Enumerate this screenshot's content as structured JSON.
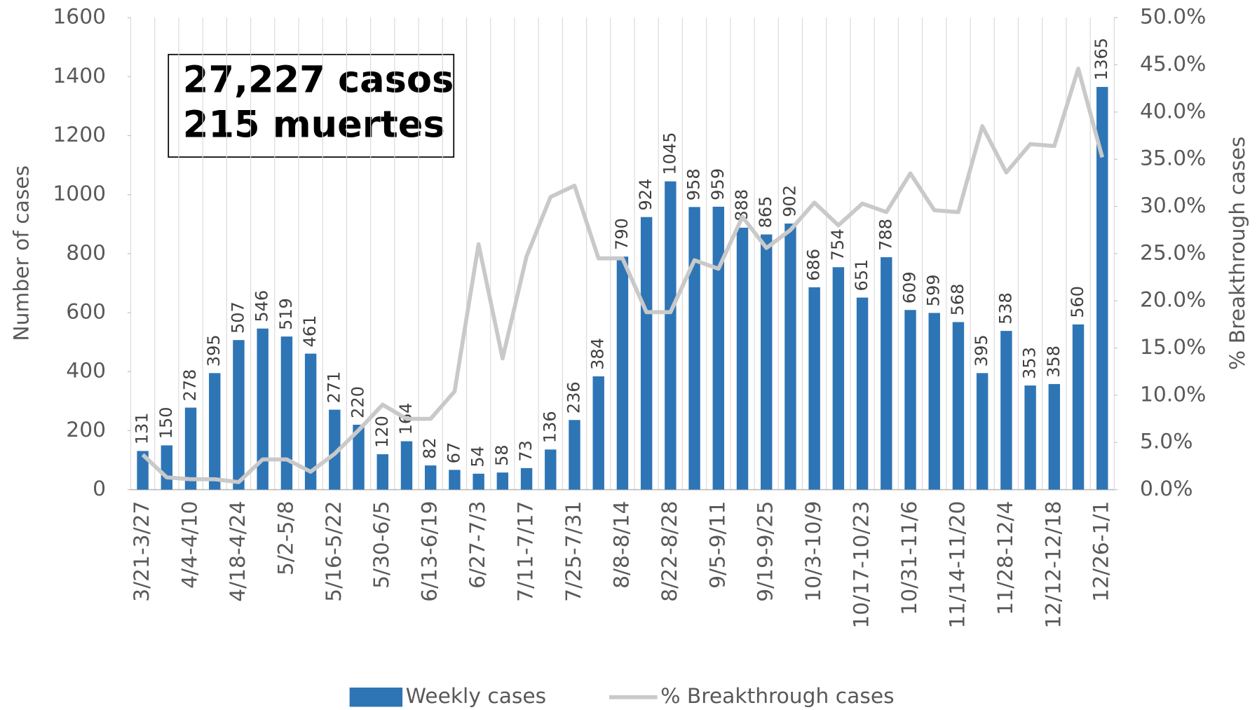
{
  "chart_data": {
    "type": "bar_line",
    "annotations": [
      "27,227 casos",
      "215 muertes"
    ],
    "ylabel": "Number of cases",
    "y2label": "% Breakthrough cases",
    "categories": [
      "3/21-3/27",
      null,
      "4/4-4/10",
      null,
      "4/18-4/24",
      null,
      "5/2-5/8",
      null,
      "5/16-5/22",
      null,
      "5/30-6/5",
      null,
      "6/13-6/19",
      null,
      "6/27-7/3",
      null,
      "7/11-7/17",
      null,
      "7/25-7/31",
      null,
      "8/8-8/14",
      null,
      "8/22-8/28",
      null,
      "9/5-9/11",
      null,
      "9/19-9/25",
      null,
      "10/3-10/9",
      null,
      "10/17-10/23",
      null,
      "10/31-11/6",
      null,
      "11/14-11/20",
      null,
      "11/28-12/4",
      null,
      "12/12-12/18",
      null,
      "12/26-1/1"
    ],
    "series": [
      {
        "name": "Weekly cases",
        "color": "#2e75b6",
        "type": "bar",
        "values": [
          131,
          150,
          278,
          395,
          507,
          546,
          519,
          461,
          271,
          220,
          120,
          164,
          82,
          67,
          54,
          58,
          73,
          136,
          236,
          384,
          790,
          924,
          1045,
          958,
          959,
          888,
          865,
          902,
          686,
          754,
          651,
          788,
          609,
          599,
          568,
          395,
          538,
          353,
          358,
          560,
          1365
        ]
      },
      {
        "name": "% Breakthrough cases",
        "color": "#c9c9c9",
        "type": "line",
        "axis": "y2",
        "values": [
          3.7,
          1.3,
          1.1,
          1.1,
          0.8,
          3.2,
          3.2,
          1.9,
          3.8,
          6.3,
          9.0,
          7.5,
          7.5,
          10.4,
          26.0,
          13.9,
          24.7,
          31.0,
          32.2,
          24.5,
          24.5,
          18.8,
          18.8,
          24.3,
          23.4,
          28.9,
          25.6,
          27.5,
          30.4,
          28.0,
          30.3,
          29.4,
          33.5,
          29.6,
          29.4,
          38.5,
          33.6,
          36.6,
          36.4,
          44.6,
          35.2
        ]
      }
    ],
    "ylim": [
      0,
      1600
    ],
    "yticks": [
      0,
      200,
      400,
      600,
      800,
      1000,
      1200,
      1400,
      1600
    ],
    "y2lim": [
      0,
      50
    ],
    "y2ticks": [
      {
        "value": 0,
        "label": "0.0%"
      },
      {
        "value": 5,
        "label": "5.0%"
      },
      {
        "value": 10,
        "label": "10.0%"
      },
      {
        "value": 15,
        "label": "15.0%"
      },
      {
        "value": 20,
        "label": "20.0%"
      },
      {
        "value": 25,
        "label": "25.0%"
      },
      {
        "value": 30,
        "label": "30.0%"
      },
      {
        "value": 35,
        "label": "35.0%"
      },
      {
        "value": 40,
        "label": "40.0%"
      },
      {
        "value": 45,
        "label": "45.0%"
      },
      {
        "value": 50,
        "label": "50.0%"
      }
    ],
    "grid": true,
    "legend": "bottom"
  }
}
